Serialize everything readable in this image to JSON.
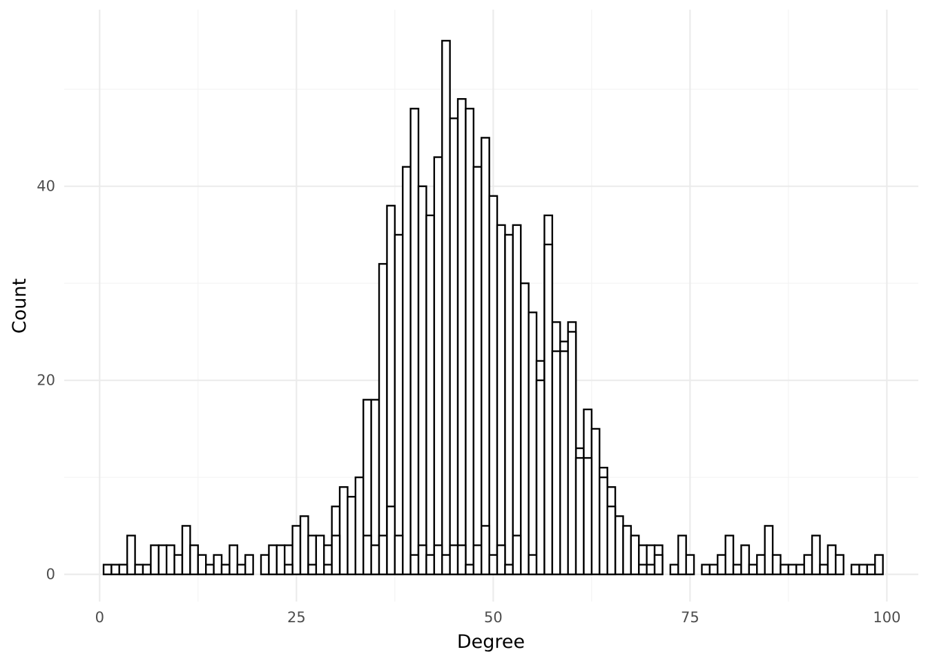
{
  "chart_data": {
    "type": "bar",
    "title": "",
    "xlabel": "Degree",
    "ylabel": "Count",
    "xlim": [
      -4.5,
      104
    ],
    "ylim": [
      -2.8,
      58.2
    ],
    "x_ticks": [
      0,
      25,
      50,
      75,
      100
    ],
    "x_tick_labels": [
      "0",
      "25",
      "50",
      "75",
      "100"
    ],
    "y_ticks": [
      0,
      20,
      40
    ],
    "y_tick_labels": [
      "0",
      "20",
      "40"
    ],
    "grid": true,
    "legend": "none",
    "bar_style": {
      "fill": "#ffffff",
      "outline": "#000000"
    },
    "series": [
      {
        "x": [
          1,
          2,
          3,
          4,
          5,
          6,
          7,
          8,
          9,
          10,
          11,
          12,
          13,
          14,
          15,
          16,
          17,
          18,
          19,
          21,
          22,
          23,
          24,
          25,
          26,
          27,
          28,
          29,
          30,
          31,
          32,
          33,
          34,
          35,
          36,
          37,
          38,
          39,
          40,
          41,
          42,
          43,
          44,
          45,
          46,
          47,
          48,
          49,
          50,
          51,
          52,
          53,
          54,
          55,
          56,
          57,
          58,
          59,
          60,
          61,
          62,
          63,
          64,
          65,
          66,
          67,
          68,
          69,
          70,
          71,
          73,
          74,
          75,
          77,
          78,
          79,
          80,
          81,
          82,
          83,
          84,
          85,
          86,
          87,
          88,
          89,
          90,
          91,
          92,
          93,
          94,
          96,
          97,
          98,
          99
        ],
        "values": [
          1,
          1,
          1,
          4,
          1,
          1,
          3,
          3,
          3,
          2,
          5,
          3,
          2,
          1,
          2,
          1,
          3,
          1,
          2,
          2,
          3,
          3,
          3,
          5,
          6,
          4,
          4,
          3,
          7,
          9,
          8,
          10,
          18,
          18,
          32,
          38,
          35,
          42,
          48,
          40,
          37,
          43,
          55,
          47,
          49,
          48,
          42,
          45,
          39,
          36,
          35,
          36,
          30,
          27,
          22,
          37,
          26,
          24,
          26,
          13,
          17,
          15,
          11,
          9,
          6,
          5,
          4,
          3,
          3,
          3,
          1,
          4,
          2,
          1,
          1,
          2,
          4,
          1,
          3,
          1,
          2,
          5,
          2,
          1,
          1,
          1,
          2,
          4,
          1,
          3,
          2,
          1,
          1,
          1,
          2
        ]
      },
      {
        "x": [
          3,
          24,
          27,
          29,
          30,
          34,
          35,
          36,
          37,
          38,
          40,
          41,
          42,
          43,
          44,
          45,
          46,
          47,
          48,
          49,
          50,
          51,
          52,
          53,
          55,
          56,
          57,
          58,
          59,
          60,
          61,
          62,
          64,
          65,
          69,
          70,
          71
        ],
        "values": [
          1,
          1,
          1,
          1,
          4,
          4,
          3,
          4,
          7,
          4,
          2,
          3,
          2,
          3,
          2,
          3,
          3,
          1,
          3,
          5,
          2,
          3,
          1,
          4,
          2,
          20,
          34,
          23,
          23,
          25,
          12,
          12,
          10,
          7,
          1,
          1,
          2
        ]
      }
    ]
  }
}
